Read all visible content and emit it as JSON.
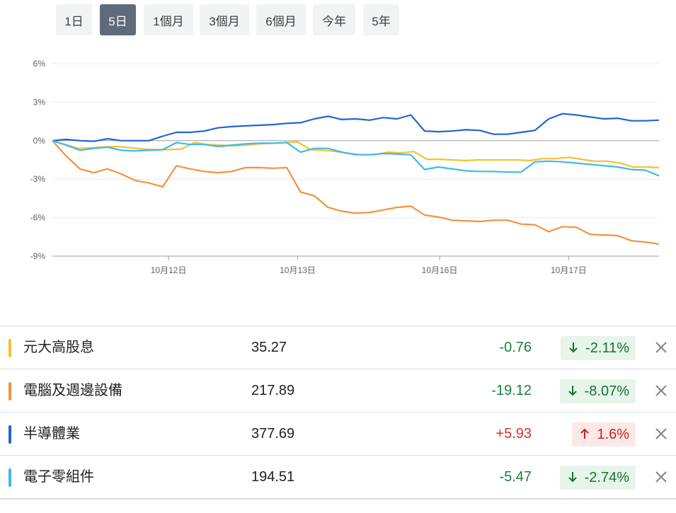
{
  "range_tabs": [
    {
      "label": "1日",
      "active": false
    },
    {
      "label": "5日",
      "active": true
    },
    {
      "label": "1個月",
      "active": false
    },
    {
      "label": "3個月",
      "active": false
    },
    {
      "label": "6個月",
      "active": false
    },
    {
      "label": "今年",
      "active": false
    },
    {
      "label": "5年",
      "active": false
    }
  ],
  "chart_data": {
    "type": "line",
    "ylim": [
      -9,
      6
    ],
    "y_ticks": [
      "6%",
      "3%",
      "0%",
      "-3%",
      "-6%",
      "-9%"
    ],
    "y_tick_values": [
      6,
      3,
      0,
      -3,
      -6,
      -9
    ],
    "x_ticks": [
      {
        "label": "10月12日",
        "index": 9
      },
      {
        "label": "10月13日",
        "index": 19
      },
      {
        "label": "10月16日",
        "index": 30
      },
      {
        "label": "10月17日",
        "index": 40
      }
    ],
    "grid": true,
    "series": [
      {
        "name": "元大高股息",
        "color": "#f5c12e",
        "values": [
          0,
          -0.3,
          -0.6,
          -0.55,
          -0.5,
          -0.45,
          -0.55,
          -0.65,
          -0.7,
          -0.7,
          -0.65,
          -0.15,
          -0.3,
          -0.35,
          -0.4,
          -0.35,
          -0.25,
          -0.2,
          -0.15,
          -0.1,
          -0.7,
          -0.75,
          -0.85,
          -1.0,
          -1.1,
          -1.1,
          -0.9,
          -0.95,
          -0.85,
          -1.45,
          -1.45,
          -1.5,
          -1.55,
          -1.5,
          -1.5,
          -1.5,
          -1.5,
          -1.55,
          -1.4,
          -1.4,
          -1.3,
          -1.45,
          -1.6,
          -1.6,
          -1.75,
          -2.05,
          -2.05,
          -2.1
        ]
      },
      {
        "name": "電腦及週邊設備",
        "color": "#f4923a",
        "values": [
          0,
          -1.2,
          -2.2,
          -2.5,
          -2.2,
          -2.6,
          -3.1,
          -3.3,
          -3.6,
          -1.95,
          -2.2,
          -2.4,
          -2.5,
          -2.4,
          -2.1,
          -2.1,
          -2.15,
          -2.1,
          -4.0,
          -4.3,
          -5.2,
          -5.5,
          -5.65,
          -5.6,
          -5.4,
          -5.2,
          -5.1,
          -5.8,
          -5.95,
          -6.2,
          -6.25,
          -6.3,
          -6.2,
          -6.2,
          -6.5,
          -6.55,
          -7.1,
          -6.7,
          -6.75,
          -7.3,
          -7.35,
          -7.4,
          -7.8,
          -7.9,
          -8.07
        ]
      },
      {
        "name": "半導體業",
        "color": "#2364d2",
        "values": [
          0,
          0.1,
          0.0,
          -0.05,
          0.15,
          0.0,
          0.0,
          0.0,
          0.35,
          0.65,
          0.65,
          0.75,
          1.0,
          1.1,
          1.15,
          1.2,
          1.25,
          1.35,
          1.4,
          1.7,
          1.9,
          1.65,
          1.7,
          1.6,
          1.8,
          1.7,
          2.0,
          0.75,
          0.7,
          0.75,
          0.85,
          0.8,
          0.5,
          0.5,
          0.65,
          0.8,
          1.7,
          2.1,
          2.0,
          1.85,
          1.7,
          1.75,
          1.55,
          1.55,
          1.6
        ]
      },
      {
        "name": "電子零組件",
        "color": "#3bbbe8",
        "values": [
          0,
          -0.35,
          -0.75,
          -0.6,
          -0.5,
          -0.75,
          -0.8,
          -0.75,
          -0.7,
          -0.15,
          -0.3,
          -0.3,
          -0.45,
          -0.35,
          -0.25,
          -0.2,
          -0.2,
          -0.15,
          -0.9,
          -0.6,
          -0.6,
          -0.9,
          -1.1,
          -1.1,
          -1.0,
          -1.05,
          -1.1,
          -2.25,
          -2.05,
          -2.2,
          -2.35,
          -2.4,
          -2.4,
          -2.45,
          -2.45,
          -1.65,
          -1.6,
          -1.65,
          -1.75,
          -1.85,
          -1.95,
          -2.05,
          -2.25,
          -2.3,
          -2.74
        ]
      }
    ]
  },
  "rows": [
    {
      "name": "元大高股息",
      "color": "#f5c12e",
      "price": "35.27",
      "change": "-0.76",
      "pct": "-2.11%",
      "direction": "down"
    },
    {
      "name": "電腦及週邊設備",
      "color": "#f4923a",
      "price": "217.89",
      "change": "-19.12",
      "pct": "-8.07%",
      "direction": "down"
    },
    {
      "name": "半導體業",
      "color": "#2364d2",
      "price": "377.69",
      "change": "+5.93",
      "pct": "1.6%",
      "direction": "up"
    },
    {
      "name": "電子零組件",
      "color": "#3bbbe8",
      "price": "194.51",
      "change": "-5.47",
      "pct": "-2.74%",
      "direction": "down"
    }
  ]
}
